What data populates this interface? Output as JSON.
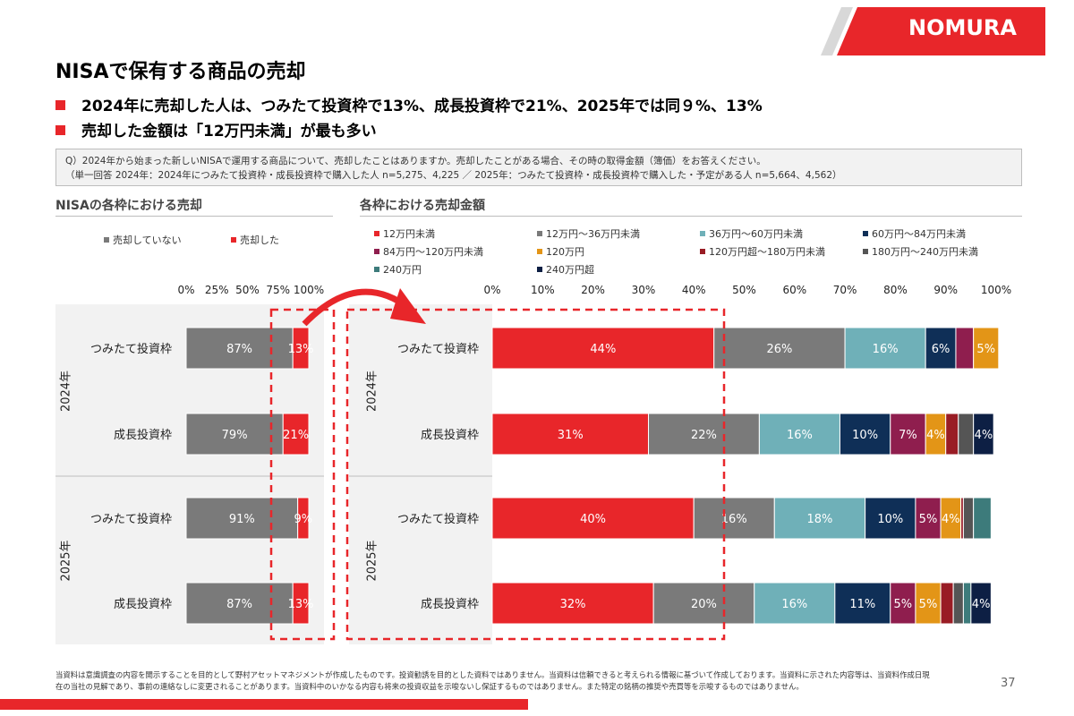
{
  "header": {
    "logo_text": "NOMURA",
    "title": "NISAで保有する商品の売却"
  },
  "bullets": [
    "2024年に売却した人は、つみたて投資枠で13%、成長投資枠で21%、2025年では同９%、13%",
    "売却した金額は「12万円未満」が最も多い"
  ],
  "question": {
    "line1": "Q）2024年から始まった新しいNISAで運用する商品について、売却したことはありますか。売却したことがある場合、その時の取得金額（簿価）をお答えください。",
    "line2": "（単一回答 2024年：2024年につみたて投資枠・成長投資枠で購入した人 n=5,275、4,225 ／ 2025年：つみたて投資枠・成長投資枠で購入した・予定がある人 n=5,664、4,562）"
  },
  "chart_data": [
    {
      "type": "bar",
      "orientation": "horizontal",
      "stacked": true,
      "title": "NISAの各枠における売却",
      "axis_ticks": [
        "0%",
        "25%",
        "50%",
        "75%",
        "100%"
      ],
      "xlim": [
        0,
        100
      ],
      "legend": [
        "売却していない",
        "売却した"
      ],
      "groups": [
        {
          "label": "2024年",
          "rows": [
            {
              "label": "つみたて投資枠",
              "values": [
                87,
                13
              ],
              "labels": [
                "87%",
                "13%"
              ]
            },
            {
              "label": "成長投資枠",
              "values": [
                79,
                21
              ],
              "labels": [
                "79%",
                "21%"
              ]
            }
          ]
        },
        {
          "label": "2025年",
          "rows": [
            {
              "label": "つみたて投資枠",
              "values": [
                91,
                9
              ],
              "labels": [
                "91%",
                "9%"
              ]
            },
            {
              "label": "成長投資枠",
              "values": [
                87,
                13
              ],
              "labels": [
                "87%",
                "13%"
              ]
            }
          ]
        }
      ]
    },
    {
      "type": "bar",
      "orientation": "horizontal",
      "stacked": true,
      "title": "各枠における売却金額",
      "axis_ticks": [
        "0%",
        "10%",
        "20%",
        "30%",
        "40%",
        "50%",
        "60%",
        "70%",
        "80%",
        "90%",
        "100%"
      ],
      "xlim": [
        0,
        100
      ],
      "legend": [
        "12万円未満",
        "12万円～36万円未満",
        "36万円～60万円未満",
        "60万円～84万円未満",
        "84万円～120万円未満",
        "120万円",
        "120万円超～180万円未満",
        "180万円～240万円未満",
        "240万円",
        "240万円超"
      ],
      "groups": [
        {
          "label": "2024年",
          "rows": [
            {
              "label": "つみたて投資枠",
              "values": [
                44,
                26,
                16,
                6,
                3.5,
                5,
                0,
                0,
                0,
                0
              ],
              "labels": [
                "44%",
                "26%",
                "16%",
                "6%",
                "",
                "5%",
                "",
                "",
                "",
                ""
              ]
            },
            {
              "label": "成長投資枠",
              "values": [
                31,
                22,
                16,
                10,
                7,
                4,
                2.5,
                3,
                0,
                4
              ],
              "labels": [
                "31%",
                "22%",
                "16%",
                "10%",
                "7%",
                "4%",
                "",
                "",
                "",
                "4%"
              ]
            }
          ]
        },
        {
          "label": "2025年",
          "rows": [
            {
              "label": "つみたて投資枠",
              "values": [
                40,
                16,
                18,
                10,
                5,
                4,
                0.5,
                2,
                3.5,
                0
              ],
              "labels": [
                "40%",
                "16%",
                "18%",
                "10%",
                "5%",
                "4%",
                "",
                "",
                "",
                ""
              ]
            },
            {
              "label": "成長投資枠",
              "values": [
                32,
                20,
                16,
                11,
                5,
                5,
                2.5,
                2,
                1.5,
                4
              ],
              "labels": [
                "32%",
                "20%",
                "16%",
                "11%",
                "5%",
                "5%",
                "",
                "",
                "",
                "4%"
              ]
            }
          ]
        }
      ]
    }
  ],
  "colors": {
    "red": "#e8262a",
    "gray": "#7a7a7a",
    "not_sold": "#7a7a7a",
    "segments": [
      "#e8262a",
      "#7a7a7a",
      "#6fb0b8",
      "#0f2f57",
      "#8f1e4e",
      "#e39517",
      "#991c24",
      "#555555",
      "#3d7b7b",
      "#0d1f44"
    ]
  },
  "footer": {
    "line1": "当資料は意識調査の内容を開示することを目的として野村アセットマネジメントが作成したものです。投資勧誘を目的とした資料ではありません。当資料は信頼できると考えられる情報に基づいて作成しております。当資料に示された内容等は、当資料作成日現",
    "line2": "在の当社の見解であり、事前の連絡なしに変更されることがあります。当資料中のいかなる内容も将来の投資収益を示唆ないし保証するものではありません。また特定の銘柄の推奨や売買等を示唆するものではありません。",
    "page_number": "37"
  }
}
